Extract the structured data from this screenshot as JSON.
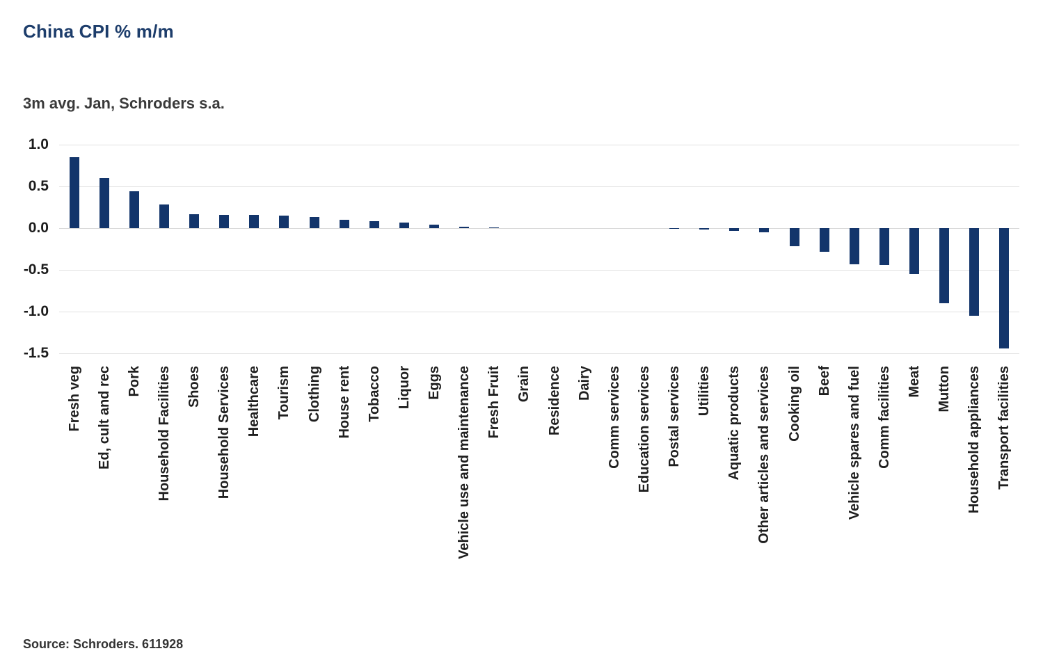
{
  "page": {
    "title": "China CPI % m/m",
    "subtitle": "3m avg. Jan, Schroders s.a.",
    "source": "Source: Schroders. 611928"
  },
  "colors": {
    "title": "#1d3d6b",
    "bar": "#13356b",
    "gridline": "#e2e2e2",
    "axis_text": "#1c1c1c"
  },
  "chart_data": {
    "type": "bar",
    "title": "China CPI % m/m",
    "subtitle": "3m avg. Jan, Schroders s.a.",
    "source_note": "Source: Schroders. 611928",
    "xlabel": "",
    "ylabel": "",
    "ylim": [
      -1.5,
      1.0
    ],
    "y_ticks": [
      1.0,
      0.5,
      0.0,
      -0.5,
      -1.0,
      -1.5
    ],
    "grid": true,
    "legend": false,
    "bar_color": "#13356b",
    "categories": [
      "Fresh veg",
      "Ed, cult and rec",
      "Pork",
      "Household Facilities",
      "Shoes",
      "Household Services",
      "Healthcare",
      "Tourism",
      "Clothing",
      "House rent",
      "Tobacco",
      "Liquor",
      "Eggs",
      "Vehicle use and maintenance",
      "Fresh Fruit",
      "Grain",
      "Residence",
      "Dairy",
      "Comm services",
      "Education services",
      "Postal services",
      "Utilities",
      "Aquatic products",
      "Other articles and services",
      "Cooking oil",
      "Beef",
      "Vehicle spares and fuel",
      "Comm facilities",
      "Meat",
      "Mutton",
      "Household appliances",
      "Transport facilities"
    ],
    "values": [
      0.85,
      0.6,
      0.44,
      0.28,
      0.17,
      0.16,
      0.16,
      0.15,
      0.13,
      0.1,
      0.08,
      0.07,
      0.04,
      0.02,
      0.01,
      0.0,
      0.0,
      0.0,
      0.0,
      0.0,
      -0.01,
      -0.02,
      -0.03,
      -0.05,
      -0.22,
      -0.28,
      -0.43,
      -0.44,
      -0.55,
      -0.9,
      -1.05,
      -1.44
    ]
  }
}
